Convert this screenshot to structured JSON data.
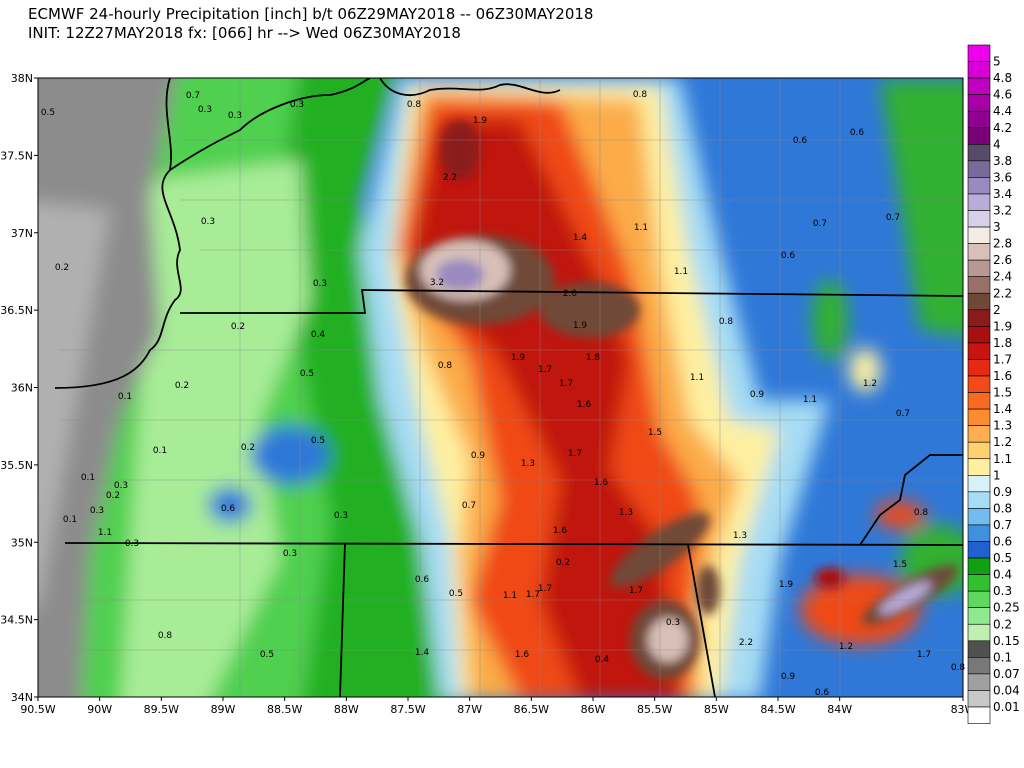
{
  "header": {
    "line1": "ECMWF 24-hourly Precipitation [inch] b/t 06Z29MAY2018 -- 06Z30MAY2018",
    "line2": "INIT: 12Z27MAY2018 fx: [066] hr --> Wed 06Z30MAY2018"
  },
  "map": {
    "lat_labels": [
      "38N",
      "37.5N",
      "37N",
      "36.5N",
      "36N",
      "35.5N",
      "35N",
      "34.5N",
      "34N"
    ],
    "lon_labels": [
      "90.5W",
      "90W",
      "89.5W",
      "89W",
      "88.5W",
      "88W",
      "87.5W",
      "87W",
      "86.5W",
      "86W",
      "85.5W",
      "85W",
      "84.5W",
      "84W",
      "83W"
    ],
    "labels": [
      "0.5",
      "0.3",
      "0.3",
      "0.3",
      "0.8",
      "1.9",
      "0.8",
      "0.6",
      "0.6",
      "2.2",
      "1.4",
      "1.1",
      "0.7",
      "0.7",
      "0.6",
      "0.2",
      "0.3",
      "3.2",
      "2.0",
      "1.1",
      "0.8",
      "0.3",
      "0.2",
      "0.4",
      "1.9",
      "1.9",
      "1.8",
      "1.7",
      "0.5",
      "0.8",
      "1.7",
      "1.1",
      "0.9",
      "1.1",
      "1.2",
      "0.2",
      "0.1",
      "1.6",
      "0.7",
      "1.5",
      "0.5",
      "0.1",
      "0.2",
      "0.9",
      "1.3",
      "1.7",
      "0.1",
      "1.6",
      "0.3",
      "0.2",
      "0.7",
      "0.6",
      "0.3",
      "0.3",
      "1.3",
      "0.1",
      "0.8",
      "1.6",
      "1.3",
      "1.1",
      "0.3",
      "0.3",
      "0.2",
      "1.5",
      "0.6",
      "0.5",
      "1.1",
      "1.7",
      "1.7",
      "1.7",
      "1.9",
      "0.8",
      "0.3",
      "2.2",
      "1.2",
      "1.6",
      "1.4",
      "0.5",
      "0.4",
      "1.7",
      "0.9",
      "0.6",
      "0.8",
      "0.7"
    ]
  },
  "colorbar": {
    "labels": [
      "5",
      "4.8",
      "4.6",
      "4.4",
      "4.2",
      "4",
      "3.8",
      "3.6",
      "3.4",
      "3.2",
      "3",
      "2.8",
      "2.6",
      "2.4",
      "2.2",
      "2",
      "1.9",
      "1.8",
      "1.7",
      "1.6",
      "1.5",
      "1.4",
      "1.3",
      "1.2",
      "1.1",
      "1",
      "0.9",
      "0.8",
      "0.7",
      "0.6",
      "0.5",
      "0.4",
      "0.3",
      "0.25",
      "0.2",
      "0.15",
      "0.1",
      "0.07",
      "0.04",
      "0.01"
    ],
    "colors": [
      "#ee00ee",
      "#d800d8",
      "#c000c0",
      "#a800a8",
      "#900090",
      "#780078",
      "#5a4a6a",
      "#7a6a9a",
      "#9a8ac0",
      "#b8acd8",
      "#d8d0e8",
      "#f4ece4",
      "#d8c0b8",
      "#b89890",
      "#987068",
      "#704838",
      "#8b1a1a",
      "#a81010",
      "#c81410",
      "#e62a12",
      "#f24a18",
      "#f86a22",
      "#fb8c30",
      "#fcae50",
      "#fdd070",
      "#fef0a0",
      "#d8f2fa",
      "#a6dcf4",
      "#72bcf0",
      "#4090e0",
      "#2060d0",
      "#10a010",
      "#30c030",
      "#60d860",
      "#90e890",
      "#c0f0b0",
      "#505050",
      "#787878",
      "#a0a0a0",
      "#c8c8c8",
      "#ffffff"
    ]
  }
}
